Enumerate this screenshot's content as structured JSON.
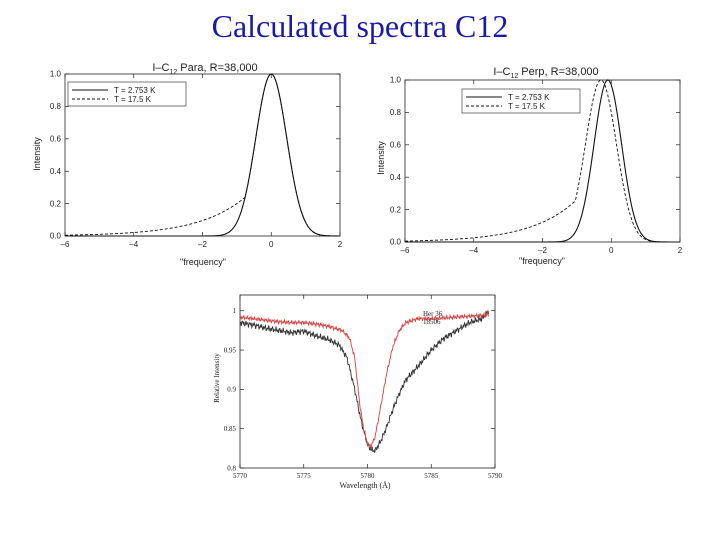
{
  "slide": {
    "title": "Calculated spectra C12"
  },
  "colors": {
    "title": "#1a1aa6",
    "axis": "#222222",
    "obs_black": "#333333",
    "obs_red": "#d94040"
  },
  "chart_data": [
    {
      "type": "line",
      "title_prefix": "I–C",
      "title_sub": "12",
      "title_suffix": " Para, R=38,000",
      "xlabel": "\"frequency\"",
      "ylabel": "Intensity",
      "xlim": [
        -6,
        2
      ],
      "ylim": [
        0,
        1.0
      ],
      "xticks": [
        -6,
        -4,
        -2,
        0,
        2
      ],
      "xtick_labels": [
        "–6",
        "–4",
        "–2",
        "0",
        "2"
      ],
      "yticks": [
        0,
        0.2,
        0.4,
        0.6,
        0.8,
        1.0
      ],
      "ytick_labels": [
        "0.0",
        "0.2",
        "0.4",
        "0.6",
        "0.8",
        "1.0"
      ],
      "legend_position": "top-left",
      "series": [
        {
          "name": "T = 2.753 K",
          "style": "solid",
          "center": 0.0,
          "sigma": 0.45,
          "tail_amp": 0.0,
          "tail_scale": 1.0,
          "peak": 1.0
        },
        {
          "name": "T = 17.5 K",
          "style": "dashed",
          "center": 0.0,
          "sigma": 0.45,
          "tail_amp": 0.42,
          "tail_scale": 1.35,
          "peak": 1.0
        }
      ]
    },
    {
      "type": "line",
      "title_prefix": "I–C",
      "title_sub": "12",
      "title_suffix": " Perp, R=38,000",
      "xlabel": "\"frequency\"",
      "ylabel": "Intensity",
      "xlim": [
        -6,
        2
      ],
      "ylim": [
        0,
        1.0
      ],
      "xticks": [
        -6,
        -4,
        -2,
        0,
        2
      ],
      "xtick_labels": [
        "–6",
        "–4",
        "–2",
        "0",
        "2"
      ],
      "yticks": [
        0,
        0.2,
        0.4,
        0.6,
        0.8,
        1.0
      ],
      "ytick_labels": [
        "0.0",
        "0.2",
        "0.4",
        "0.6",
        "0.8",
        "1.0"
      ],
      "legend_position": "top-right",
      "series": [
        {
          "name": "T = 2.753 K",
          "style": "solid",
          "center": -0.1,
          "sigma": 0.4,
          "tail_amp": 0.0,
          "tail_scale": 1.0,
          "peak": 1.0
        },
        {
          "name": "T = 17.5 K",
          "style": "dashed",
          "center": -0.3,
          "sigma": 0.45,
          "tail_amp": 0.45,
          "tail_scale": 1.3,
          "peak": 1.0
        }
      ]
    },
    {
      "type": "line",
      "xlabel": "Wavelength (Å)",
      "ylabel": "Relative Intensity",
      "xlim": [
        5770,
        5790
      ],
      "ylim": [
        0.8,
        1.02
      ],
      "xticks": [
        5770,
        5775,
        5780,
        5785,
        5790
      ],
      "xtick_labels": [
        "5770",
        "5775",
        "5780",
        "5785",
        "5790"
      ],
      "yticks": [
        0.8,
        0.85,
        0.9,
        0.95,
        1.0
      ],
      "ytick_labels": [
        "0.8",
        "0.85",
        "0.9",
        "0.95",
        "1"
      ],
      "legend_position": "top-right",
      "series": [
        {
          "name": "Her 36",
          "color": "#333333",
          "x": [
            5770,
            5771,
            5772,
            5773,
            5774,
            5775,
            5776,
            5777,
            5777.8,
            5778.4,
            5779,
            5779.5,
            5780,
            5780.3,
            5780.6,
            5781,
            5781.5,
            5782,
            5782.5,
            5783,
            5784,
            5785,
            5786,
            5787,
            5788,
            5789,
            5789.5
          ],
          "y": [
            0.985,
            0.982,
            0.978,
            0.975,
            0.972,
            0.974,
            0.968,
            0.963,
            0.956,
            0.94,
            0.9,
            0.86,
            0.83,
            0.823,
            0.822,
            0.833,
            0.852,
            0.875,
            0.895,
            0.912,
            0.93,
            0.95,
            0.965,
            0.975,
            0.985,
            0.99,
            1.0
          ]
        },
        {
          "name": "18506",
          "color": "#d94040",
          "x": [
            5770,
            5771,
            5772,
            5773,
            5774,
            5775,
            5776,
            5777,
            5778,
            5778.6,
            5779,
            5779.4,
            5779.7,
            5780,
            5780.3,
            5780.6,
            5781,
            5781.5,
            5782,
            5782.5,
            5783,
            5784,
            5785,
            5786,
            5787,
            5788,
            5789,
            5789.5
          ],
          "y": [
            0.992,
            0.99,
            0.988,
            0.986,
            0.985,
            0.985,
            0.983,
            0.98,
            0.975,
            0.965,
            0.94,
            0.88,
            0.85,
            0.83,
            0.828,
            0.84,
            0.875,
            0.92,
            0.955,
            0.975,
            0.985,
            0.99,
            0.99,
            0.991,
            0.992,
            0.993,
            0.994,
            0.995
          ]
        }
      ]
    }
  ]
}
